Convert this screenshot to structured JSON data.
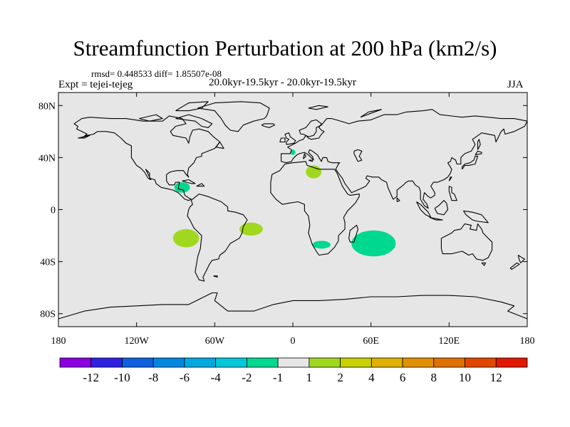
{
  "header": {
    "title": "Streamfunction Perturbation at 200 hPa (km2/s)",
    "stats": "rmsd= 0.448533 diff= 1.85507e-08",
    "expt": "Expt = tejei-tejeg",
    "period": "20.0kyr-19.5kyr - 20.0kyr-19.5kyr",
    "season": "JJA"
  },
  "chart_data": {
    "type": "map-contour",
    "title": "Streamfunction Perturbation at 200 hPa (km2/s)",
    "xlim": [
      -180,
      180
    ],
    "ylim": [
      -90,
      90
    ],
    "x_ticks": [
      {
        "value": -180,
        "label": "180"
      },
      {
        "value": -120,
        "label": "120W"
      },
      {
        "value": -60,
        "label": "60W"
      },
      {
        "value": 0,
        "label": "0"
      },
      {
        "value": 60,
        "label": "60E"
      },
      {
        "value": 120,
        "label": "120E"
      },
      {
        "value": 180,
        "label": "180"
      }
    ],
    "y_ticks": [
      {
        "value": 80,
        "label": "80N"
      },
      {
        "value": 40,
        "label": "40N"
      },
      {
        "value": 0,
        "label": "0"
      },
      {
        "value": -40,
        "label": "40S"
      },
      {
        "value": -80,
        "label": "80S"
      }
    ],
    "colorbar": {
      "colors": [
        "#8a00e0",
        "#3020e0",
        "#1060e0",
        "#0088e0",
        "#00a8e0",
        "#00c8d8",
        "#00d890",
        "#e6e6e6",
        "#a0d820",
        "#c8d000",
        "#e0b000",
        "#e09000",
        "#e07000",
        "#e04800",
        "#e01800"
      ],
      "labels": [
        "-12",
        "-10",
        "-8",
        "-6",
        "-4",
        "-2",
        "-1",
        "1",
        "2",
        "4",
        "6",
        "8",
        "10",
        "12"
      ]
    },
    "anomalies": [
      {
        "lon": -82,
        "lat": -22,
        "rlon": 10,
        "rlat": 7,
        "category": "2",
        "color": "#a0d820"
      },
      {
        "lon": -32,
        "lat": -15,
        "rlon": 9,
        "rlat": 5,
        "category": "2",
        "color": "#a0d820"
      },
      {
        "lon": 16,
        "lat": 29,
        "rlon": 6,
        "rlat": 5,
        "category": "2",
        "color": "#a0d820"
      },
      {
        "lon": 62,
        "lat": -26,
        "rlon": 17,
        "rlat": 10,
        "category": "-1",
        "color": "#00d890"
      },
      {
        "lon": 22,
        "lat": -27,
        "rlon": 7,
        "rlat": 3,
        "category": "-1",
        "color": "#00d890"
      },
      {
        "lon": -85,
        "lat": 17,
        "rlon": 6,
        "rlat": 4,
        "category": "-1",
        "color": "#00d890"
      },
      {
        "lon": 0,
        "lat": 44,
        "rlon": 2,
        "rlat": 2,
        "category": "-1",
        "color": "#00d890"
      }
    ]
  }
}
